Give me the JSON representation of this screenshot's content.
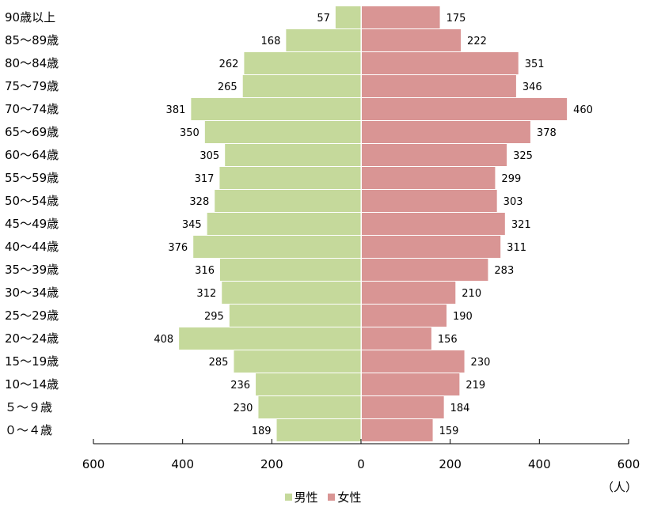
{
  "chart_data": {
    "type": "bar",
    "orientation": "horizontal-pyramid",
    "categories": [
      "90歳以上",
      "85～89歳",
      "80～84歳",
      "75～79歳",
      "70～74歳",
      "65～69歳",
      "60～64歳",
      "55～59歳",
      "50～54歳",
      "45～49歳",
      "40～44歳",
      "35～39歳",
      "30～34歳",
      "25～29歳",
      "20～24歳",
      "15～19歳",
      "10～14歳",
      "５～９歳",
      "０～４歳"
    ],
    "series": [
      {
        "name": "男性",
        "color": "#c5d99b",
        "values": [
          57,
          168,
          262,
          265,
          381,
          350,
          305,
          317,
          328,
          345,
          376,
          316,
          312,
          295,
          408,
          285,
          236,
          230,
          189
        ]
      },
      {
        "name": "女性",
        "color": "#d99594",
        "values": [
          175,
          222,
          351,
          346,
          460,
          378,
          325,
          299,
          303,
          321,
          311,
          283,
          210,
          190,
          156,
          230,
          219,
          184,
          159
        ]
      }
    ],
    "xlim": [
      -600,
      600
    ],
    "xticks": [
      "600",
      "400",
      "200",
      "0",
      "200",
      "400",
      "600"
    ],
    "unit_label": "（人）",
    "legend_position": "bottom"
  }
}
